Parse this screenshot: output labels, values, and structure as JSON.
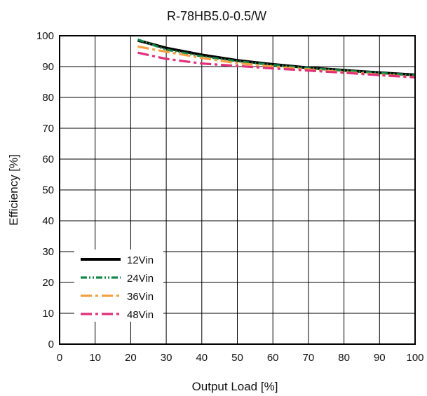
{
  "chart_data": {
    "type": "line",
    "title": "R-78HB5.0-0.5/W",
    "xlabel": "Output Load [%]",
    "ylabel": "Efficiency [%]",
    "xlim": [
      0,
      100
    ],
    "ylim": [
      0,
      100
    ],
    "xticks": [
      0,
      10,
      20,
      30,
      40,
      50,
      60,
      70,
      80,
      90,
      100
    ],
    "yticks": [
      0,
      10,
      20,
      30,
      40,
      50,
      60,
      70,
      80,
      90,
      100
    ],
    "grid": true,
    "legend_position": "bottom-left",
    "x": [
      22,
      30,
      40,
      50,
      60,
      70,
      80,
      90,
      100
    ],
    "series": [
      {
        "name": "12Vin",
        "color": "#000000",
        "dash": "solid",
        "values": [
          98.5,
          96.0,
          93.8,
          92.0,
          90.7,
          89.6,
          88.8,
          88.0,
          87.3
        ]
      },
      {
        "name": "24Vin",
        "color": "#138a4a",
        "dash": "dash-dot-dot",
        "values": [
          98.8,
          95.5,
          93.3,
          91.7,
          90.5,
          89.5,
          88.7,
          87.9,
          87.2
        ]
      },
      {
        "name": "36Vin",
        "color": "#f4a040",
        "dash": "dash-dot",
        "values": [
          96.5,
          94.8,
          92.8,
          91.1,
          90.0,
          89.1,
          88.2,
          87.4,
          86.6
        ]
      },
      {
        "name": "48Vin",
        "color": "#e0307a",
        "dash": "dash-dot",
        "values": [
          94.5,
          92.5,
          91.0,
          90.2,
          89.4,
          88.7,
          88.0,
          87.2,
          86.5
        ]
      }
    ]
  }
}
